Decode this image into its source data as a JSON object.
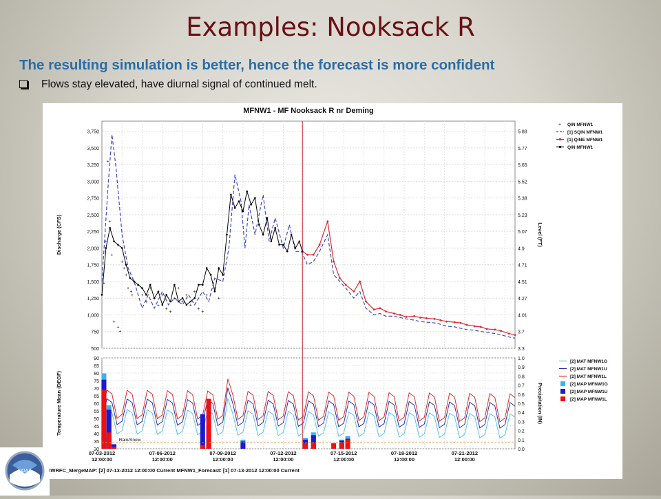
{
  "slide": {
    "title": "Examples:  Nooksack R",
    "subtitle": "The resulting simulation is better, hence the forecast is more confident",
    "bullet": "Flows stay elevated, have diurnal signal of continued melt."
  },
  "footer_text": "NWRFC_MergeMAP: [2] 07-13-2012 12:00:00 Current   MFNW1_Forecast: [1] 07-13-2012 12:00:00 Current",
  "logo_text": "NOAA",
  "colors": {
    "title": "#6b0f14",
    "subtitle": "#2a6ea8",
    "observed": "#000000",
    "simulated": "#3a48c8",
    "forecast": "#e0292b",
    "mat_1g": "#5bc2e8",
    "mat_1u": "#2d2fb0",
    "mat_1l": "#e0292b",
    "map_1g": "#3ab4ec",
    "map_1u": "#1a1ad0",
    "map_1l": "#ee1111",
    "current_time_line": "#c81e1e"
  },
  "chart_data": [
    {
      "type": "line",
      "title": "MFNW1 - MF Nooksack R nr Deming",
      "ylabel": "Discharge (CFS)",
      "y2label": "Level (FT)",
      "ylim": [
        500,
        3900
      ],
      "yticks": [
        "500",
        "750",
        "1,000",
        "1,250",
        "1,500",
        "1,750",
        "2,000",
        "2,250",
        "2,500",
        "2,750",
        "3,000",
        "3,250",
        "3,500",
        "3,750"
      ],
      "y2ticks": [
        "3.3",
        "3.7",
        "4.01",
        "4.27",
        "4.51",
        "4.71",
        "4.9",
        "5.07",
        "5.23",
        "5.38",
        "5.52",
        "5.65",
        "5.77",
        "5.88"
      ],
      "x_range_days": [
        0,
        20.5
      ],
      "grid": true,
      "legend_position": "top-right",
      "current_time_day": 9.95,
      "series": [
        {
          "name": "QIN MFNW1",
          "style": "scatter",
          "x": [
            0.1,
            0.2,
            0.3,
            0.4,
            0.5,
            0.6,
            0.8,
            0.9,
            1.0,
            1.1,
            1.2,
            1.3,
            1.45,
            1.5,
            1.6,
            1.8,
            2.0,
            2.2,
            2.4,
            2.6,
            2.8,
            3.0,
            3.2,
            3.4,
            3.6,
            3.8,
            4.0,
            4.2,
            4.4,
            4.6,
            4.8,
            5.0,
            5.2,
            5.4,
            5.6,
            5.8,
            6.0
          ],
          "values": [
            1480,
            2100,
            3300,
            2400,
            1900,
            900,
            820,
            760,
            1800,
            1700,
            1600,
            1400,
            1350,
            1300,
            1500,
            1450,
            1300,
            1200,
            1400,
            1250,
            1150,
            1300,
            1100,
            1050,
            1250,
            1400,
            1200,
            1300,
            1150,
            1350,
            1100,
            1050,
            1300,
            1600,
            1400,
            1250,
            1600
          ]
        },
        {
          "name": "[1] SQIN MFNW1",
          "style": "dashed",
          "x": [
            0,
            0.3,
            0.5,
            0.7,
            1.0,
            1.3,
            1.6,
            2.0,
            2.3,
            2.6,
            3.0,
            3.3,
            3.6,
            4.0,
            4.3,
            4.6,
            5.0,
            5.3,
            5.6,
            6.0,
            6.3,
            6.6,
            6.9,
            7.1,
            7.3,
            7.6,
            8.0,
            8.3,
            8.6,
            9.0,
            9.3,
            9.6,
            9.9,
            10.2,
            10.5,
            10.8,
            11.2,
            11.5,
            11.8,
            12.1,
            12.5,
            12.8,
            13.1,
            13.5,
            13.8,
            14.1,
            14.5,
            14.8,
            15.1,
            15.5,
            15.8,
            16.1,
            16.5,
            16.8,
            17.1,
            17.5,
            17.8,
            18.1,
            18.5,
            18.8,
            19.1,
            19.5,
            19.8,
            20.2,
            20.5
          ],
          "values": [
            1500,
            2900,
            3700,
            3200,
            2200,
            1700,
            1500,
            1100,
            1300,
            1100,
            1350,
            1150,
            1250,
            1150,
            1300,
            1150,
            1350,
            1200,
            1550,
            1500,
            2000,
            3100,
            2700,
            2000,
            2650,
            2200,
            2800,
            2100,
            2450,
            2000,
            2350,
            1950,
            1950,
            1750,
            1800,
            1950,
            2200,
            1600,
            1500,
            1400,
            1250,
            1350,
            1100,
            1000,
            1020,
            980,
            980,
            960,
            940,
            920,
            900,
            890,
            880,
            860,
            830,
            820,
            800,
            780,
            770,
            750,
            740,
            720,
            700,
            670,
            650
          ]
        },
        {
          "name": "[1] QINE MFNW1",
          "style": "line-markers",
          "x": [
            9.95,
            10.2,
            10.5,
            10.8,
            11.2,
            11.5,
            11.8,
            12.1,
            12.5,
            12.8,
            13.1,
            13.5,
            13.8,
            14.1,
            14.5,
            14.8,
            15.1,
            15.5,
            15.8,
            16.1,
            16.5,
            16.8,
            17.1,
            17.5,
            17.8,
            18.1,
            18.5,
            18.8,
            19.1,
            19.5,
            19.8,
            20.2,
            20.5
          ],
          "values": [
            1950,
            1900,
            1900,
            2050,
            2400,
            1800,
            1550,
            1450,
            1350,
            1500,
            1200,
            1080,
            1100,
            1050,
            1020,
            1000,
            970,
            980,
            960,
            950,
            940,
            920,
            900,
            890,
            880,
            850,
            830,
            820,
            790,
            780,
            760,
            720,
            700
          ]
        },
        {
          "name": "QIN MFNW1",
          "style": "line-markers",
          "x": [
            0,
            0.2,
            0.4,
            0.6,
            0.8,
            1.0,
            1.2,
            1.4,
            1.6,
            1.8,
            2.0,
            2.2,
            2.4,
            2.6,
            2.8,
            3.0,
            3.2,
            3.4,
            3.6,
            3.8,
            4.0,
            4.2,
            4.4,
            4.6,
            4.8,
            5.0,
            5.2,
            5.4,
            5.6,
            5.8,
            6.0,
            6.2,
            6.4,
            6.6,
            6.8,
            7.0,
            7.2,
            7.4,
            7.6,
            7.8,
            8.0,
            8.2,
            8.4,
            8.6,
            8.8,
            9.0,
            9.2,
            9.4,
            9.6,
            9.8,
            9.95
          ],
          "values": [
            1300,
            2000,
            2300,
            2100,
            2050,
            2000,
            1750,
            1550,
            1500,
            1450,
            1400,
            1300,
            1450,
            1250,
            1350,
            1150,
            1300,
            1200,
            1450,
            1200,
            1250,
            1150,
            1200,
            1250,
            1450,
            1450,
            1700,
            1600,
            1350,
            1700,
            1600,
            2200,
            2800,
            2600,
            2700,
            2550,
            2850,
            2650,
            2750,
            2350,
            2200,
            2450,
            2100,
            2300,
            2050,
            2050,
            1950,
            2200,
            2000,
            2100,
            1950
          ]
        }
      ]
    },
    {
      "type": "bar+line",
      "ylabel": "Temperature Mean (DEGF)",
      "y2label": "Precipitation (IN)",
      "ylim": [
        30,
        90
      ],
      "yticks": [
        "30",
        "35",
        "40",
        "45",
        "50",
        "55",
        "60",
        "65",
        "70",
        "75",
        "80",
        "85",
        "90"
      ],
      "y2lim": [
        0,
        1
      ],
      "y2ticks": [
        "0.0",
        "0.1",
        "0.2",
        "0.3",
        "0.4",
        "0.5",
        "0.6",
        "0.7",
        "0.8",
        "0.9",
        "1.0"
      ],
      "x_range_days": [
        0,
        20.5
      ],
      "xticks": [
        "07-03-2012",
        "07-06-2012",
        "07-09-2012",
        "07-12-2012",
        "07-15-2012",
        "07-18-2012",
        "07-21-2012"
      ],
      "xticks_sub": "12:00:00",
      "annotation": "Rain/Snow",
      "legend_position": "top-right",
      "series": [
        {
          "name": "[2] MAT MFNW1G",
          "style": "line",
          "daily_min": 38,
          "daily_max": 58,
          "amp_end": 52
        },
        {
          "name": "[2] MAT MFNW1U",
          "style": "line",
          "daily_min": 44,
          "daily_max": 65,
          "amp_end": 60
        },
        {
          "name": "[2] MAT MFNW1L",
          "style": "line",
          "daily_min": 48,
          "daily_max": 71,
          "amp_end": 66
        },
        {
          "name": "[2] MAP MFNW1G",
          "style": "bar",
          "x": [
            0.1,
            0.35,
            7.0,
            10.1,
            10.5,
            11.9,
            12.2
          ],
          "values": [
            0.83,
            0.48,
            0.1,
            0.12,
            0.18,
            0.1,
            0.14
          ]
        },
        {
          "name": "[2] MAP MFNW1U",
          "style": "bar",
          "x": [
            0.1,
            0.35,
            0.6,
            5.0,
            5.3,
            7.0,
            10.1,
            10.5,
            11.9,
            12.2
          ],
          "values": [
            0.76,
            0.43,
            0.05,
            0.38,
            0.25,
            0.08,
            0.1,
            0.15,
            0.09,
            0.11
          ]
        },
        {
          "name": "[2] MAP MFNW1L",
          "style": "bar",
          "x": [
            0.1,
            0.35,
            0.6,
            5.0,
            5.3,
            10.1,
            10.5,
            11.5,
            11.9,
            12.2
          ],
          "values": [
            0.65,
            0.18,
            0.02,
            0.04,
            0.55,
            0.06,
            0.07,
            0.06,
            0.07,
            0.1
          ]
        }
      ]
    }
  ]
}
